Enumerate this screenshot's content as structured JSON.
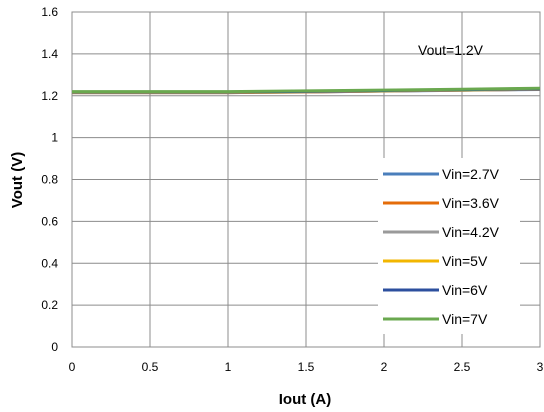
{
  "chart_data": {
    "type": "line",
    "xlabel": "Iout (A)",
    "ylabel": "Vout (V)",
    "annotation": "Vout=1.2V",
    "xlim": [
      0,
      3
    ],
    "ylim": [
      0,
      1.6
    ],
    "xticks": [
      "0",
      "0.5",
      "1",
      "1.5",
      "2",
      "2.5",
      "3"
    ],
    "yticks": [
      "0",
      "0.2",
      "0.4",
      "0.6",
      "0.8",
      "1",
      "1.2",
      "1.4",
      "1.6"
    ],
    "grid": true,
    "legend_position": "bottom-right",
    "x": [
      0,
      0.5,
      1,
      1.5,
      2,
      2.5,
      3
    ],
    "series": [
      {
        "name": "Vin=2.7V",
        "color": "#4a7ebb",
        "values": [
          1.215,
          1.215,
          1.215,
          1.218,
          1.222,
          1.226,
          1.23
        ]
      },
      {
        "name": "Vin=3.6V",
        "color": "#e46c0a",
        "values": [
          1.215,
          1.215,
          1.215,
          1.218,
          1.223,
          1.227,
          1.231
        ]
      },
      {
        "name": "Vin=4.2V",
        "color": "#9a9a9a",
        "values": [
          1.216,
          1.216,
          1.216,
          1.219,
          1.223,
          1.227,
          1.231
        ]
      },
      {
        "name": "Vin=5V",
        "color": "#f2b600",
        "values": [
          1.217,
          1.217,
          1.217,
          1.22,
          1.224,
          1.228,
          1.232
        ]
      },
      {
        "name": "Vin=6V",
        "color": "#2c4f9e",
        "values": [
          1.218,
          1.218,
          1.218,
          1.221,
          1.225,
          1.229,
          1.233
        ]
      },
      {
        "name": "Vin=7V",
        "color": "#6aa84f",
        "values": [
          1.22,
          1.22,
          1.22,
          1.223,
          1.227,
          1.231,
          1.236
        ]
      }
    ]
  }
}
